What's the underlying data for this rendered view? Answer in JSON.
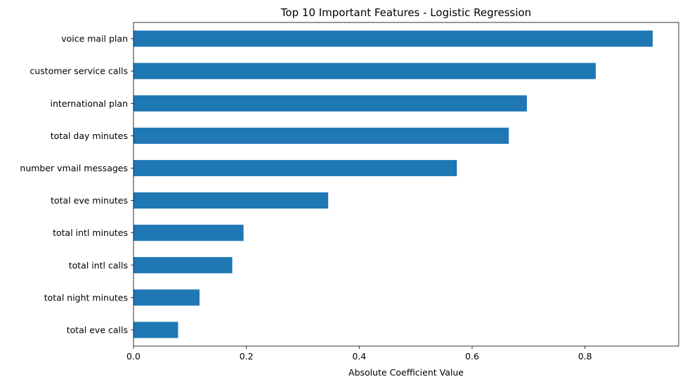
{
  "chart_data": {
    "type": "bar",
    "orientation": "horizontal",
    "title": "Top 10 Important Features - Logistic Regression",
    "xlabel": "Absolute Coefficient Value",
    "ylabel": "",
    "categories": [
      "total eve calls",
      "total night minutes",
      "total intl calls",
      "total intl minutes",
      "total eve minutes",
      "number vmail messages",
      "total day minutes",
      "international plan",
      "customer service calls",
      "voice mail plan"
    ],
    "values": [
      0.079,
      0.117,
      0.175,
      0.195,
      0.345,
      0.573,
      0.665,
      0.697,
      0.819,
      0.92
    ],
    "xlim": [
      0,
      0.966
    ],
    "xticks": [
      0.0,
      0.2,
      0.4,
      0.6,
      0.8
    ],
    "xtick_labels": [
      "0.0",
      "0.2",
      "0.4",
      "0.6",
      "0.8"
    ],
    "grid": false,
    "bar_color": "#1f77b4"
  }
}
